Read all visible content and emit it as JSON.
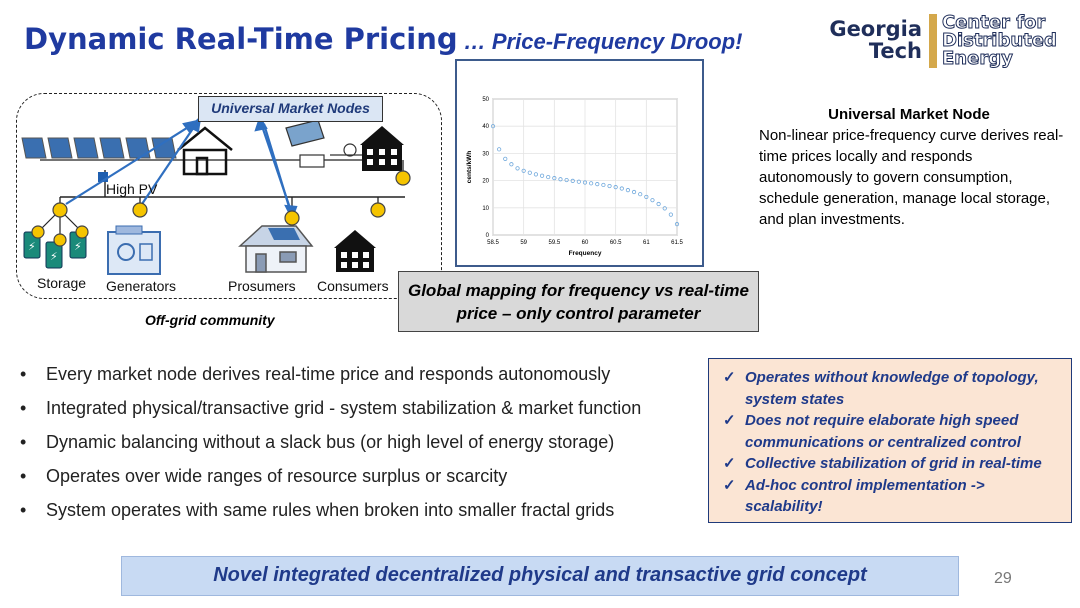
{
  "slide": {
    "title_main": "Dynamic Real-Time Pricing",
    "title_sub": " … Price-Frequency Droop!",
    "page_number": "29"
  },
  "logo": {
    "line1": "Georgia",
    "line2": "Tech",
    "line3": "Center for",
    "line4": "Distributed",
    "line5": "Energy"
  },
  "diagram": {
    "market_nodes_label": "Universal Market Nodes",
    "high_pv": "High PV",
    "storage": "Storage",
    "generators": "Generators",
    "prosumers": "Prosumers",
    "consumers": "Consumers",
    "caption": "Off-grid community"
  },
  "chart_data": {
    "type": "scatter",
    "xlabel": "Frequency",
    "ylabel": "cents/kWh",
    "xlim": [
      58.5,
      61.5
    ],
    "ylim": [
      0,
      50
    ],
    "xticks": [
      58.5,
      59,
      59.5,
      60,
      60.5,
      61,
      61.5
    ],
    "yticks": [
      0,
      10,
      20,
      30,
      40,
      50
    ],
    "x": [
      58.5,
      58.6,
      58.7,
      58.8,
      58.9,
      59.0,
      59.1,
      59.2,
      59.3,
      59.4,
      59.5,
      59.6,
      59.7,
      59.8,
      59.9,
      60.0,
      60.1,
      60.2,
      60.3,
      60.4,
      60.5,
      60.6,
      60.7,
      60.8,
      60.9,
      61.0,
      61.1,
      61.2,
      61.3,
      61.4,
      61.5
    ],
    "y": [
      40.0,
      31.5,
      28.0,
      26.0,
      24.5,
      23.6,
      22.9,
      22.3,
      21.8,
      21.3,
      20.9,
      20.5,
      20.2,
      19.9,
      19.6,
      19.3,
      19.0,
      18.7,
      18.4,
      18.0,
      17.6,
      17.1,
      16.5,
      15.8,
      15.0,
      14.0,
      12.8,
      11.4,
      9.8,
      7.5,
      4.0
    ],
    "grid": true,
    "marker_color": "#6fa8dc"
  },
  "global_box": {
    "text": "Global  mapping for frequency vs real-time price – only control parameter"
  },
  "umn_panel": {
    "heading": "Universal Market Node",
    "body": "Non-linear price-frequency curve derives real-time prices locally and responds autonomously to govern consumption, schedule generation, manage local storage, and plan investments."
  },
  "bullets": [
    "Every market node derives real-time price and responds autonomously",
    "Integrated physical/transactive grid - system stabilization & market function",
    "Dynamic balancing without a slack bus (or high level of energy storage)",
    "Operates over wide ranges of resource surplus or scarcity",
    "System operates with same rules when broken into smaller fractal grids"
  ],
  "checklist": [
    "Operates without knowledge of topology, system states",
    "Does not require elaborate high speed communications or centralized control",
    "Collective stabilization of grid in real-time",
    "Ad-hoc control implementation -> scalability!"
  ],
  "banner": {
    "text": "Novel integrated decentralized physical and transactive grid concept"
  },
  "colors": {
    "title_blue": "#1f3aa0",
    "node_yellow": "#f5c400",
    "banner_fill": "#c8daf3",
    "check_fill": "#fbe5d4"
  }
}
